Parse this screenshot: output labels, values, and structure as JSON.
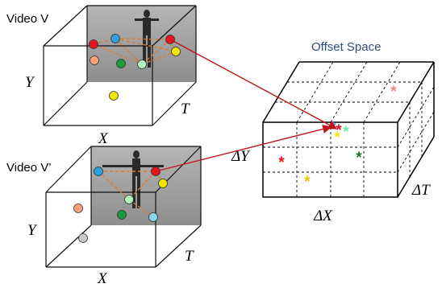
{
  "video1": {
    "title": "Video V",
    "axis_y": "Y",
    "axis_x": "X",
    "axis_t": "T"
  },
  "video2": {
    "title": "Video V’",
    "axis_y": "Y",
    "axis_x": "X",
    "axis_t": "T"
  },
  "offset_space": {
    "title": "Offset Space",
    "axis_y": "ΔY",
    "axis_x": "ΔX",
    "axis_t": "ΔT",
    "marker_symbol": "*"
  },
  "colors": {
    "red": "#e8141c",
    "blue": "#2f9fe0",
    "orange": "#f5a27c",
    "green": "#1b9a3c",
    "light_green": "#b8f0c0",
    "yellow": "#f2e600",
    "gray": "#c8c8c8",
    "dashed_orange": "#e07a2a",
    "arrow": "#c0141c",
    "dark_green": "#1f6b3a",
    "title_blue": "#2e4d7b",
    "frame_gray": "#9a9a9a"
  }
}
